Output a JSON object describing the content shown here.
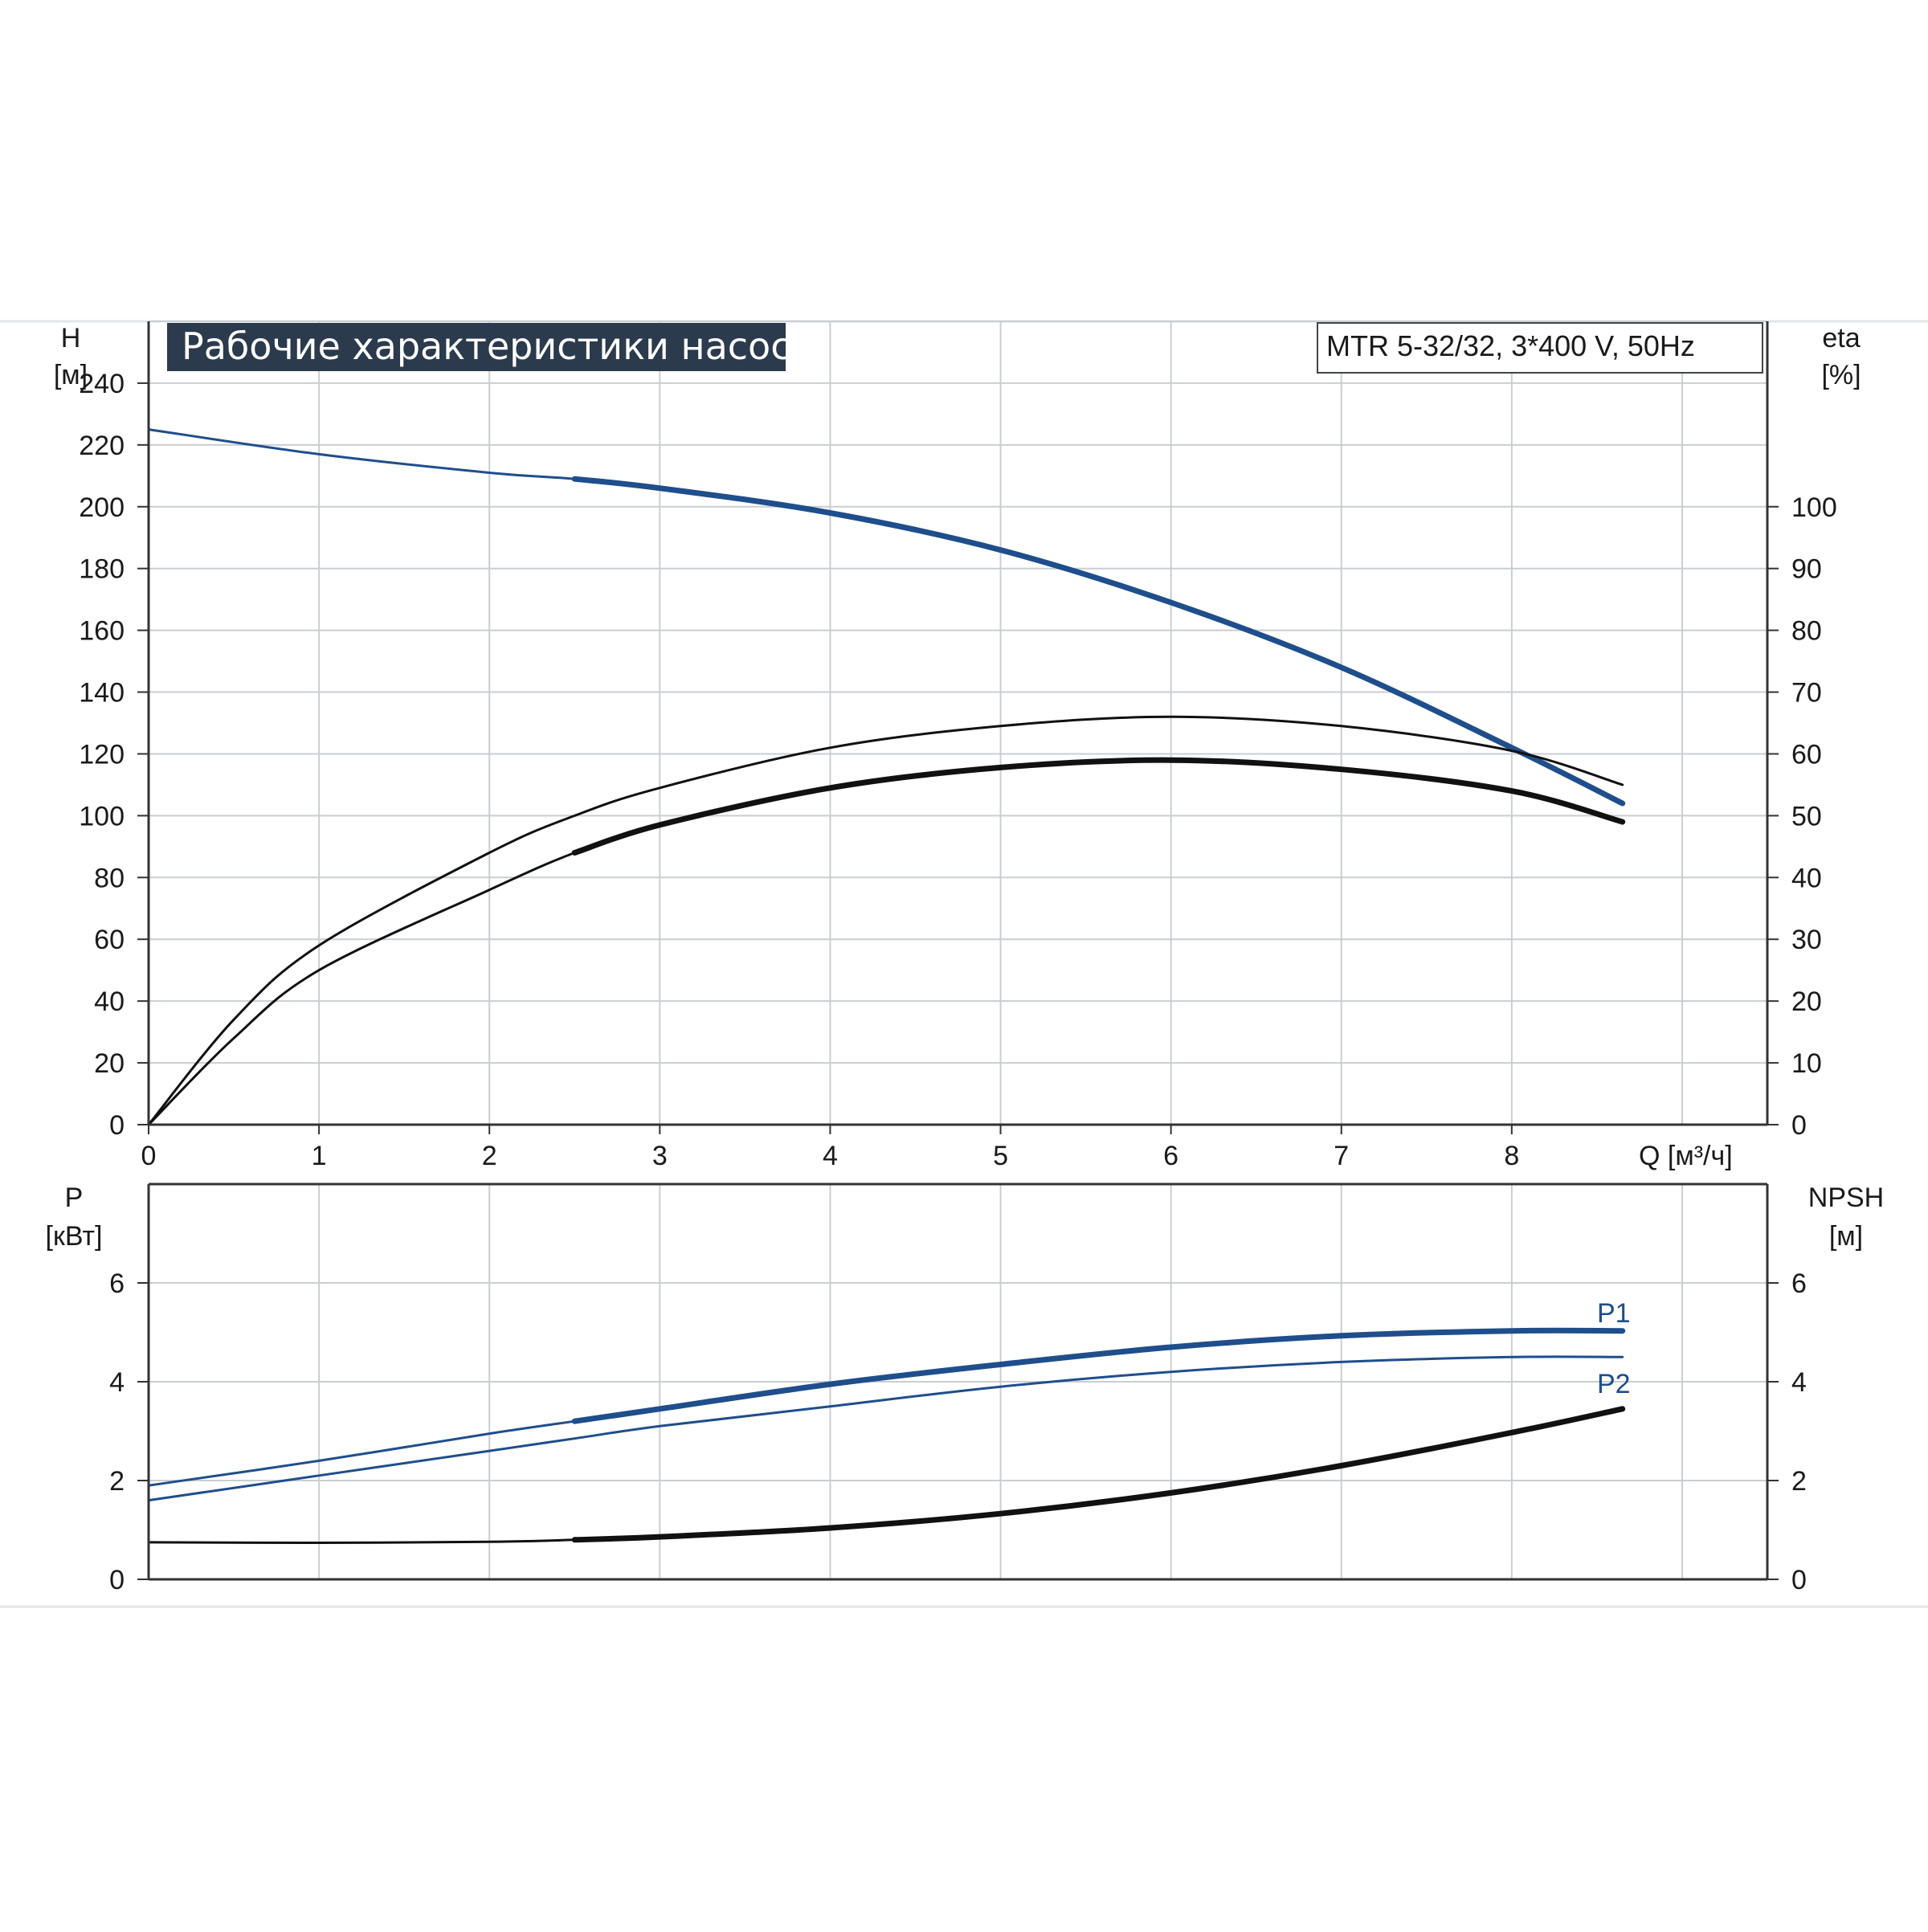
{
  "chart_data": [
    {
      "type": "line",
      "title": "Рабочие характеристики насоса",
      "model": "MTR 5-32/32, 3*400 V, 50Hz",
      "xlabel": "Q [м³/ч]",
      "ylabel_left": "H",
      "ylabel_left_unit": "[м]",
      "ylabel_right": "eta",
      "ylabel_right_unit": "[%]",
      "xlim": [
        0,
        9.5
      ],
      "ylim_left": [
        0,
        260
      ],
      "ylim_right": [
        0,
        130
      ],
      "x_ticks": [
        "0",
        "1",
        "2",
        "3",
        "4",
        "5",
        "6",
        "7",
        "8"
      ],
      "y_ticks_left": [
        "0",
        "20",
        "40",
        "60",
        "80",
        "100",
        "120",
        "140",
        "160",
        "180",
        "200",
        "220",
        "240"
      ],
      "y_ticks_right": [
        "0",
        "10",
        "20",
        "30",
        "40",
        "50",
        "60",
        "70",
        "80",
        "90",
        "100"
      ],
      "grid": true,
      "series": [
        {
          "color": "#1f4e8c",
          "axis": "left",
          "bold_from": 2.5,
          "x": [
            0,
            1,
            2,
            2.5,
            3,
            4,
            5,
            6,
            7,
            8,
            8.65
          ],
          "y": [
            225,
            217,
            211,
            209,
            206,
            198,
            186,
            169,
            148,
            122,
            104
          ]
        },
        {
          "color": "#111111",
          "axis": "right",
          "bold_from": 99,
          "x": [
            0,
            0.5,
            1,
            2,
            2.5,
            3,
            4,
            5,
            6,
            7,
            8,
            8.65
          ],
          "y": [
            0,
            17,
            29,
            44,
            50,
            54.5,
            61,
            64.5,
            66,
            64.5,
            60.5,
            55
          ]
        },
        {
          "color": "#111111",
          "axis": "right",
          "bold_from": 2.5,
          "x": [
            0,
            0.5,
            1,
            2,
            2.5,
            3,
            4,
            5,
            6,
            7,
            8,
            8.65
          ],
          "y": [
            0,
            14,
            25,
            38,
            44,
            48.5,
            54.5,
            57.8,
            59,
            57.5,
            54,
            49
          ]
        }
      ]
    },
    {
      "type": "line",
      "ylabel_left": "P",
      "ylabel_left_unit": "[кВт]",
      "ylabel_right": "NPSH",
      "ylabel_right_unit": "[м]",
      "xlim": [
        0,
        9.5
      ],
      "ylim_left": [
        0,
        8
      ],
      "ylim_right": [
        0,
        8
      ],
      "y_ticks_left": [
        "0",
        "2",
        "4",
        "6"
      ],
      "y_ticks_right": [
        "0",
        "2",
        "4",
        "6"
      ],
      "grid": true,
      "series": [
        {
          "name": "P1",
          "color": "#1f4e8c",
          "axis": "left",
          "bold_from": 2.5,
          "x": [
            0,
            1,
            2,
            2.5,
            3,
            4,
            5,
            6,
            7,
            8,
            8.65
          ],
          "y": [
            1.9,
            2.4,
            2.95,
            3.2,
            3.45,
            3.95,
            4.35,
            4.7,
            4.93,
            5.03,
            5.03
          ]
        },
        {
          "name": "P2",
          "color": "#1f4e8c",
          "axis": "left",
          "bold_from": 99,
          "x": [
            0,
            1,
            2,
            2.5,
            3,
            4,
            5,
            6,
            7,
            8,
            8.65
          ],
          "y": [
            1.6,
            2.1,
            2.6,
            2.85,
            3.1,
            3.5,
            3.9,
            4.2,
            4.4,
            4.5,
            4.5
          ]
        },
        {
          "color": "#111111",
          "axis": "right",
          "bold_from": 2.5,
          "x": [
            0,
            1,
            2,
            2.5,
            3,
            4,
            5,
            6,
            7,
            8,
            8.65
          ],
          "y": [
            0.75,
            0.74,
            0.76,
            0.8,
            0.86,
            1.04,
            1.33,
            1.75,
            2.3,
            2.97,
            3.45
          ]
        }
      ]
    }
  ]
}
